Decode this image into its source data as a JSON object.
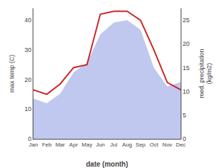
{
  "chart_data": {
    "type": "line",
    "categories": [
      "Jan",
      "Feb",
      "Mar",
      "Apr",
      "May",
      "Jun",
      "Jul",
      "Aug",
      "Sep",
      "Oct",
      "Nov",
      "Dec"
    ],
    "xlabel": "date (month)",
    "ylabel": "max temp (C)",
    "y2label": "med. precipitation\n(kg/m2)",
    "series": [
      {
        "type": "area",
        "axis": "y2",
        "color": "#c0c8f0",
        "values": [
          8.5,
          7.5,
          9.5,
          14.0,
          16.0,
          22.0,
          24.5,
          25.0,
          23.0,
          15.0,
          11.0,
          12.0
        ]
      },
      {
        "type": "line",
        "color": "#cc2222",
        "values": [
          16.5,
          15.0,
          18.5,
          24.0,
          25.0,
          42.0,
          43.0,
          43.0,
          40.0,
          30.0,
          19.0,
          16.5
        ]
      }
    ],
    "ylim": [
      0,
      44
    ],
    "yticks": [
      0,
      10,
      20,
      30,
      40
    ],
    "y2lim": [
      0,
      27.5
    ],
    "y2ticks": [
      0,
      5,
      10,
      15,
      20,
      25
    ],
    "grid": false
  }
}
